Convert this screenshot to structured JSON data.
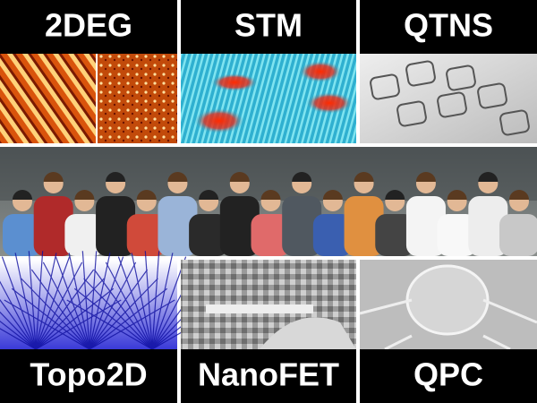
{
  "top_row": [
    "2DEG",
    "STM",
    "QTNS"
  ],
  "bottom_row": [
    "Topo2D",
    "NanoFET",
    "QPC"
  ]
}
